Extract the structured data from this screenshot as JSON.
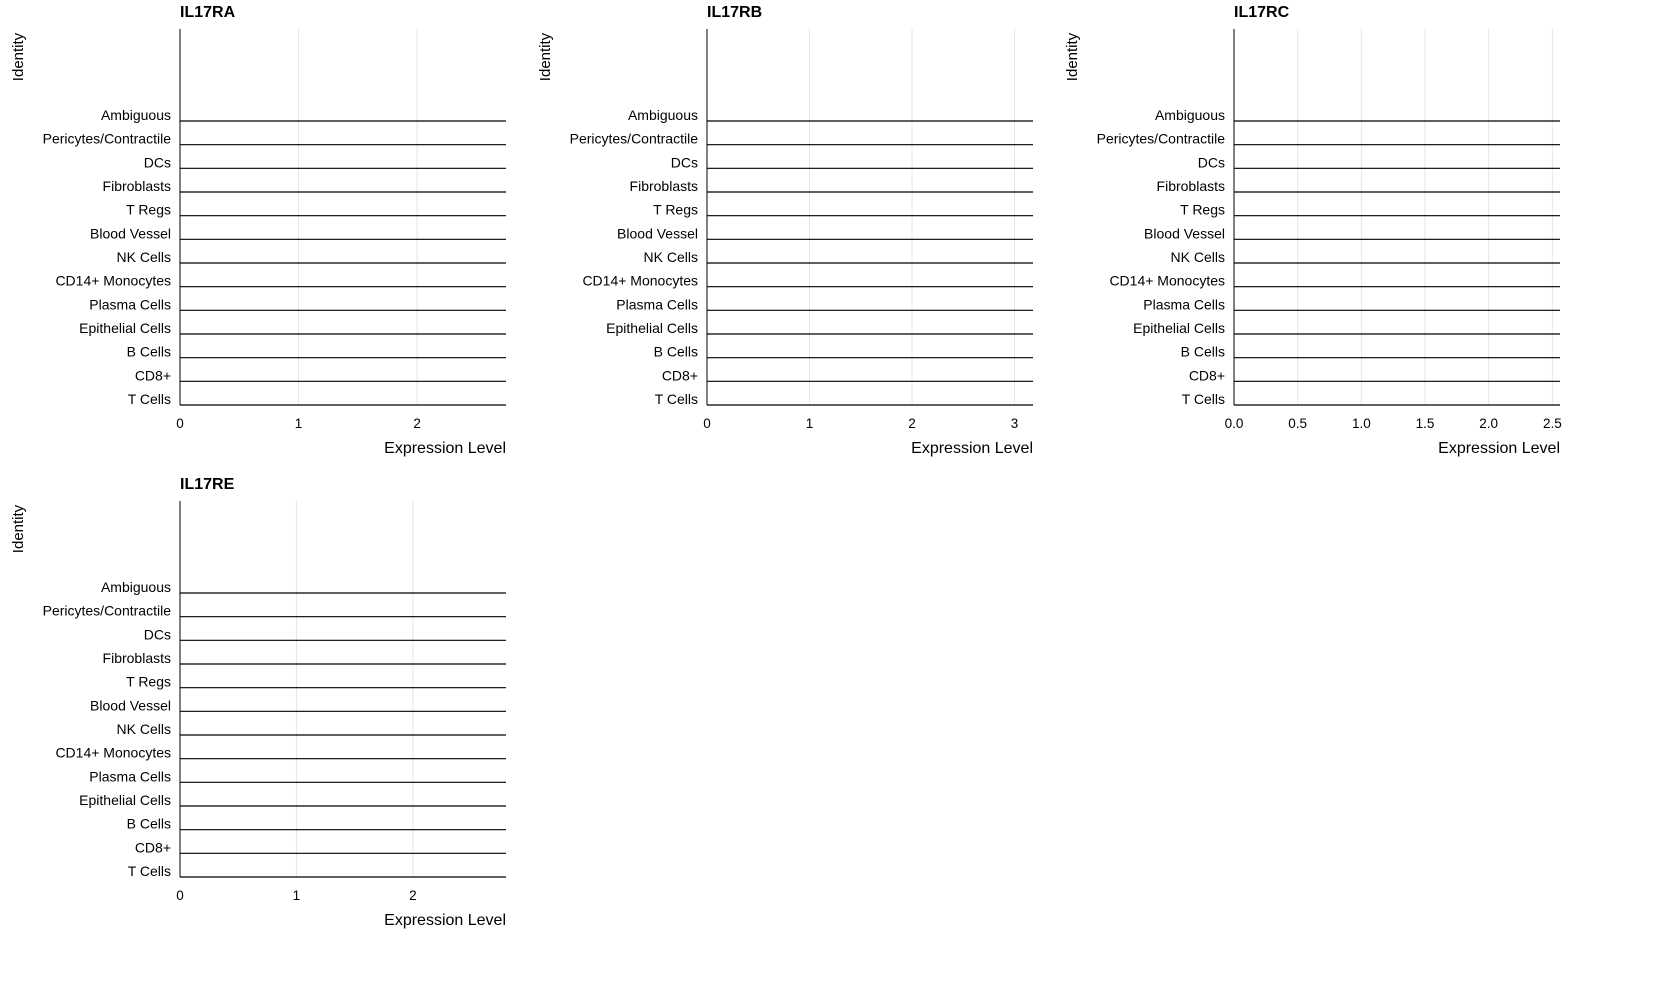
{
  "chart_data": [
    {
      "type": "ridge",
      "title": "IL17RA",
      "xlabel": "Expression Level",
      "ylabel": "Identity",
      "categories": [
        "T Cells",
        "CD8+",
        "B Cells",
        "Epithelial Cells",
        "Plasma Cells",
        "CD14+ Monocytes",
        "NK Cells",
        "Blood Vessel",
        "T Regs",
        "Fibroblasts",
        "DCs",
        "Pericytes/Contractile",
        "Ambiguous"
      ],
      "density_values": [
        0,
        0,
        0,
        0,
        0,
        0,
        0,
        0,
        0,
        0,
        0,
        0,
        0
      ],
      "xlim": [
        0,
        2.75
      ],
      "xticks": [
        "0",
        "1",
        "2"
      ],
      "xtick_values": [
        0,
        1,
        2
      ],
      "grid": true
    },
    {
      "type": "ridge",
      "title": "IL17RB",
      "xlabel": "Expression Level",
      "ylabel": "Identity",
      "categories": [
        "T Cells",
        "CD8+",
        "B Cells",
        "Epithelial Cells",
        "Plasma Cells",
        "CD14+ Monocytes",
        "NK Cells",
        "Blood Vessel",
        "T Regs",
        "Fibroblasts",
        "DCs",
        "Pericytes/Contractile",
        "Ambiguous"
      ],
      "density_values": [
        0,
        0,
        0,
        0,
        0,
        0,
        0,
        0,
        0,
        0,
        0,
        0,
        0
      ],
      "xlim": [
        0,
        3.18
      ],
      "xticks": [
        "0",
        "1",
        "2",
        "3"
      ],
      "xtick_values": [
        0,
        1,
        2,
        3
      ],
      "grid": true
    },
    {
      "type": "ridge",
      "title": "IL17RC",
      "xlabel": "Expression Level",
      "ylabel": "Identity",
      "categories": [
        "T Cells",
        "CD8+",
        "B Cells",
        "Epithelial Cells",
        "Plasma Cells",
        "CD14+ Monocytes",
        "NK Cells",
        "Blood Vessel",
        "T Regs",
        "Fibroblasts",
        "DCs",
        "Pericytes/Contractile",
        "Ambiguous"
      ],
      "density_values": [
        0,
        0,
        0,
        0,
        0,
        0,
        0,
        0,
        0,
        0,
        0,
        0,
        0
      ],
      "xlim": [
        0,
        2.56
      ],
      "xticks": [
        "0.0",
        "0.5",
        "1.0",
        "1.5",
        "2.0",
        "2.5"
      ],
      "xtick_values": [
        0,
        0.5,
        1,
        1.5,
        2,
        2.5
      ],
      "grid": true
    },
    {
      "type": "ridge",
      "title": "IL17RE",
      "xlabel": "Expression Level",
      "ylabel": "Identity",
      "categories": [
        "T Cells",
        "CD8+",
        "B Cells",
        "Epithelial Cells",
        "Plasma Cells",
        "CD14+ Monocytes",
        "NK Cells",
        "Blood Vessel",
        "T Regs",
        "Fibroblasts",
        "DCs",
        "Pericytes/Contractile",
        "Ambiguous"
      ],
      "density_values": [
        0,
        0,
        0,
        0,
        0,
        0,
        0,
        0,
        0,
        0,
        0,
        0,
        0
      ],
      "xlim": [
        0,
        2.8
      ],
      "xticks": [
        "0",
        "1",
        "2"
      ],
      "xtick_values": [
        0,
        1,
        2
      ],
      "grid": true
    }
  ]
}
